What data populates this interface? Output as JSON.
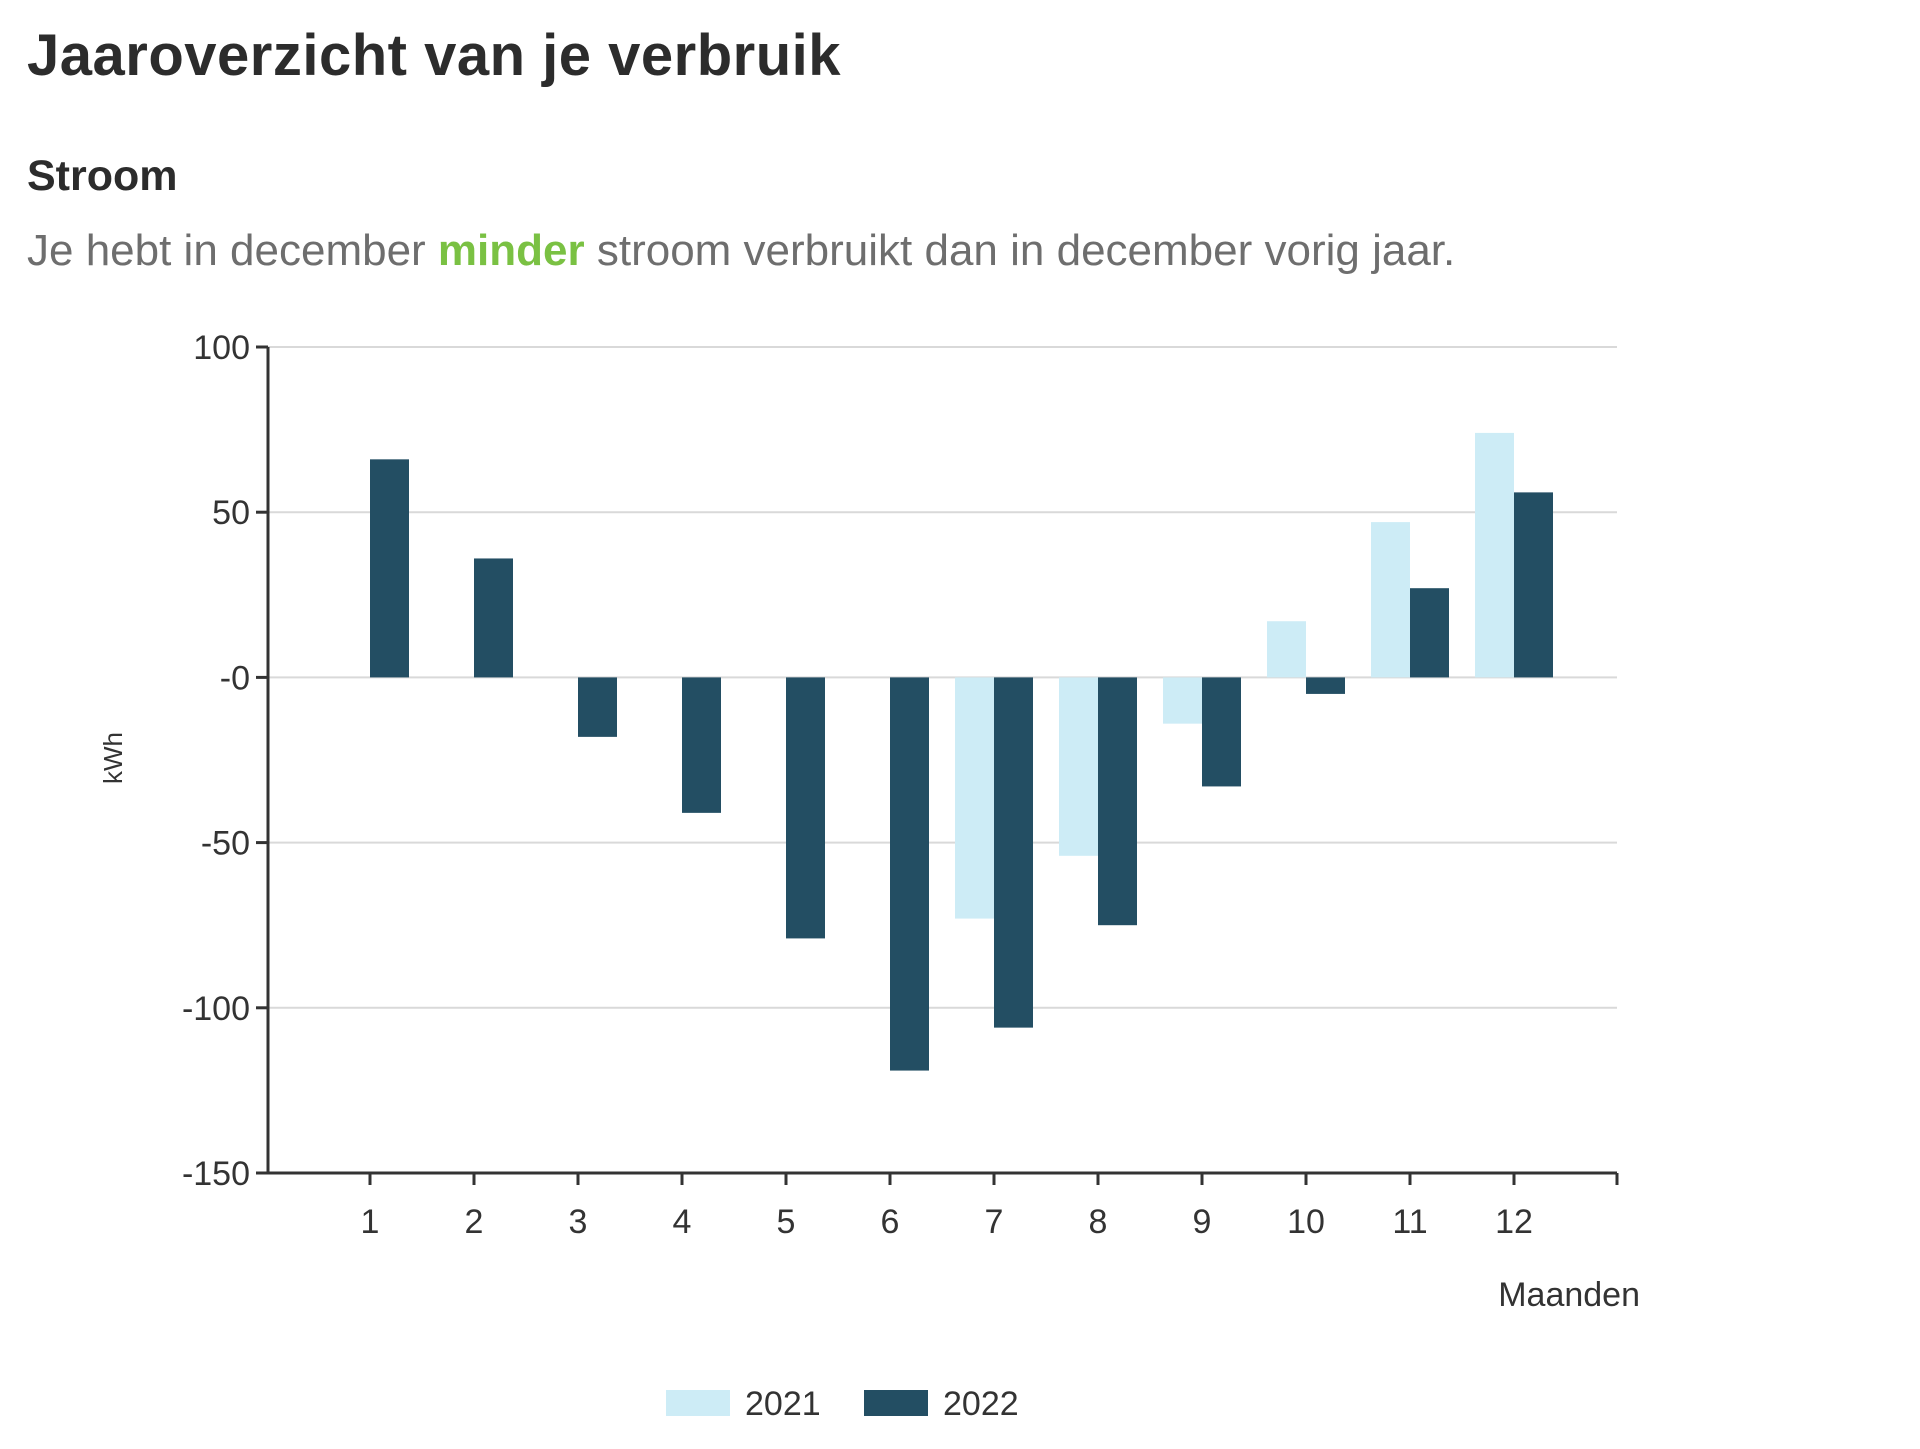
{
  "header": {
    "title": "Jaaroverzicht van je verbruik"
  },
  "section": {
    "title": "Stroom",
    "summary_before": "Je hebt in december ",
    "summary_highlight": "minder",
    "summary_after": " stroom verbruikt dan in december vorig jaar.",
    "highlight_color": "#7ac143"
  },
  "chart_data": {
    "type": "bar",
    "categories": [
      "1",
      "2",
      "3",
      "4",
      "5",
      "6",
      "7",
      "8",
      "9",
      "10",
      "11",
      "12"
    ],
    "series": [
      {
        "name": "2021",
        "color": "#cdecf6",
        "values": [
          0,
          0,
          0,
          0,
          0,
          0,
          -73,
          -54,
          -14,
          17,
          47,
          74
        ]
      },
      {
        "name": "2022",
        "color": "#234e63",
        "values": [
          66,
          36,
          -18,
          -41,
          -79,
          -119,
          -106,
          -75,
          -33,
          -5,
          27,
          56
        ]
      }
    ],
    "title": "",
    "xlabel": "Maanden",
    "ylabel": "kWh",
    "ylim": [
      -150,
      100
    ],
    "yticks": [
      {
        "value": 100,
        "label": "100"
      },
      {
        "value": 50,
        "label": "50"
      },
      {
        "value": 0,
        "label": "-0"
      },
      {
        "value": -50,
        "label": "-50"
      },
      {
        "value": -100,
        "label": "-100"
      },
      {
        "value": -150,
        "label": "-150"
      }
    ],
    "grid": true,
    "legend": "bottom-center"
  }
}
